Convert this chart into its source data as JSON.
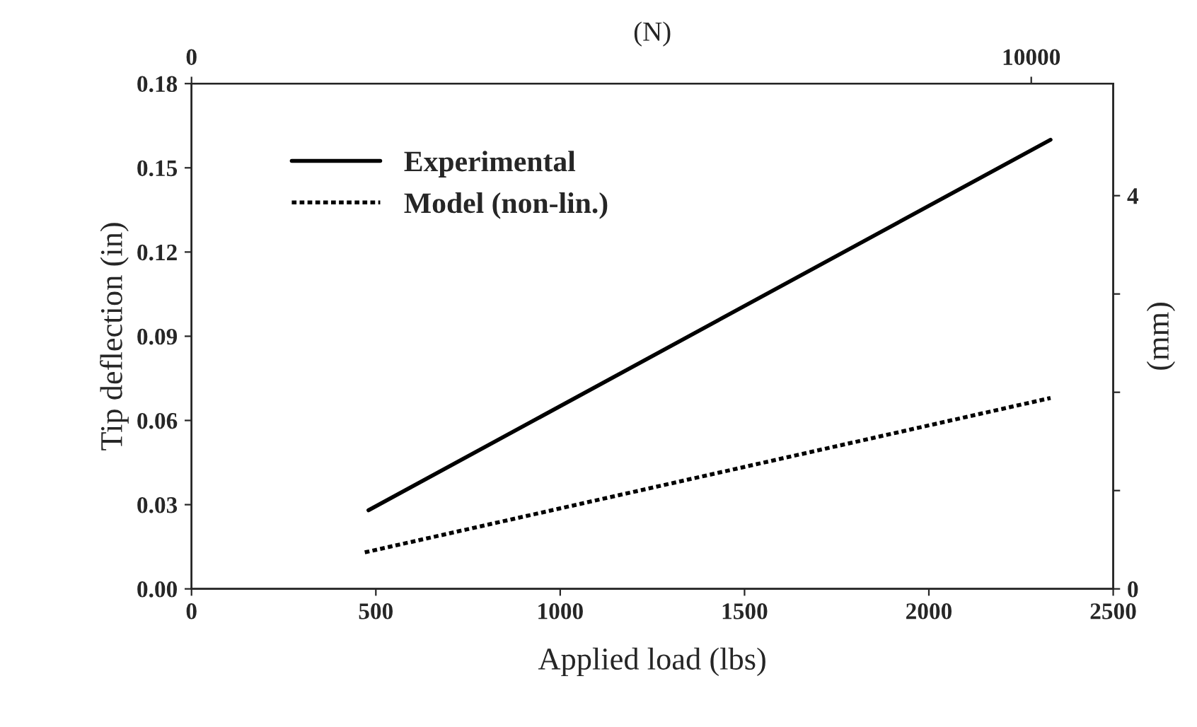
{
  "chart_data": {
    "type": "line",
    "xlabel": "Applied load (lbs)",
    "ylabel": "Tip deflection (in)",
    "y2label": "(mm)",
    "x2label": "(N)",
    "series": [
      {
        "name": "Experimental",
        "color": "#000000",
        "x": [
          480,
          2330
        ],
        "values": [
          0.028,
          0.16
        ],
        "line_style": "solid"
      },
      {
        "name": "Model (non-lin.)",
        "color": "#000000",
        "x": [
          470,
          2330
        ],
        "values": [
          0.013,
          0.068
        ],
        "line_style": "dotted"
      }
    ],
    "xlim": [
      0,
      2500
    ],
    "xticks": [
      0,
      500,
      1000,
      1500,
      2000,
      2500
    ],
    "ylim": [
      0,
      0.18
    ],
    "yticks": [
      {
        "value": 0,
        "label": "0.00"
      },
      {
        "value": 0.03,
        "label": "0.03"
      },
      {
        "value": 0.06,
        "label": "0.06"
      },
      {
        "value": 0.09,
        "label": "0.09"
      },
      {
        "value": 0.12,
        "label": "0.12"
      },
      {
        "value": 0.15,
        "label": "0.15"
      },
      {
        "value": 0.18,
        "label": "0.18"
      }
    ],
    "y2lim": [
      0,
      5.14
    ],
    "y2ticks": [
      0,
      {
        "value": 1,
        "label": null
      },
      {
        "value": 2,
        "label": null
      },
      {
        "value": 3,
        "label": null
      },
      4
    ],
    "x2lim": [
      0,
      10976
    ],
    "x2ticks": [
      0,
      10000
    ],
    "legend": "top left",
    "grid": false,
    "marker": "none"
  }
}
